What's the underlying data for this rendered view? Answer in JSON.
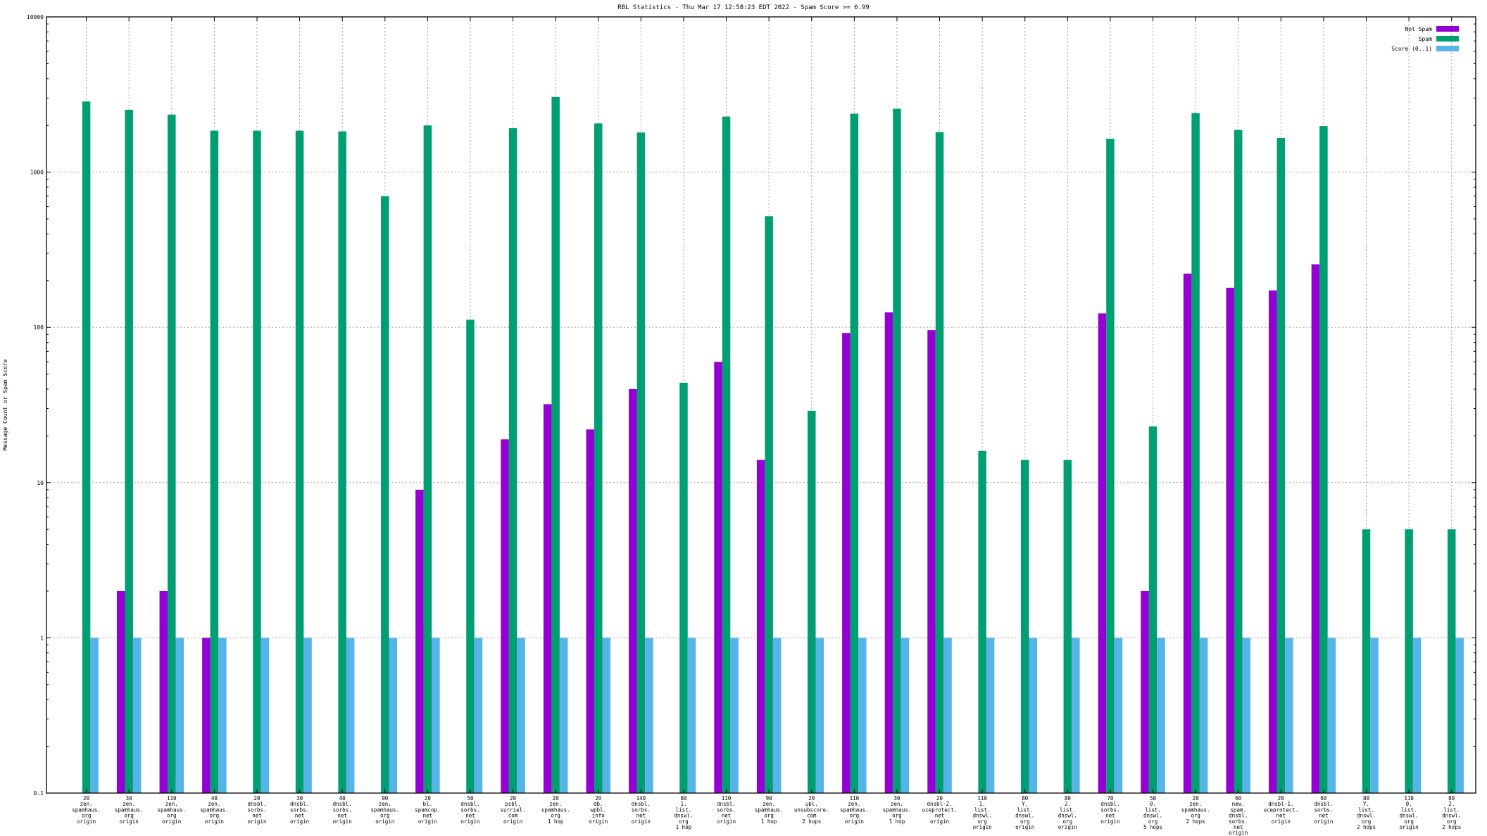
{
  "chart_data": {
    "type": "bar",
    "title": "RBL Statistics - Thu Mar 17 12:58:23 EDT 2022 - Spam Score >= 0.99",
    "xlabel": "",
    "ylabel": "Message Count or Spam Score",
    "yscale": "log",
    "ylim": [
      0.1,
      10000
    ],
    "yticks": [
      "0.1",
      "1",
      "10",
      "100",
      "1000",
      "10000"
    ],
    "grid": true,
    "legend_position": "top-right",
    "categories": [
      [
        "20",
        "zen.",
        "spamhaus.",
        "org",
        "origin"
      ],
      [
        "30",
        "zen.",
        "spamhaus.",
        "org",
        "origin"
      ],
      [
        "110",
        "zen.",
        "spamhaus.",
        "org",
        "origin"
      ],
      [
        "40",
        "zen.",
        "spamhaus.",
        "org",
        "origin"
      ],
      [
        "20",
        "dnsbl.",
        "sorbs.",
        "net",
        "origin"
      ],
      [
        "30",
        "dnsbl.",
        "sorbs.",
        "net",
        "origin"
      ],
      [
        "40",
        "dnsbl.",
        "sorbs.",
        "net",
        "origin"
      ],
      [
        "90",
        "zen.",
        "spamhaus.",
        "org",
        "origin"
      ],
      [
        "20",
        "bl.",
        "spamcop.",
        "net",
        "origin"
      ],
      [
        "50",
        "dnsbl.",
        "sorbs.",
        "net",
        "origin"
      ],
      [
        "20",
        "psbl.",
        "surriel.",
        "com",
        "origin"
      ],
      [
        "20",
        "zen.",
        "spamhaus.",
        "org",
        "1 hop"
      ],
      [
        "20",
        "db.",
        "wpbl.",
        "info",
        "origin"
      ],
      [
        "140",
        "dnsbl.",
        "sorbs.",
        "net",
        "origin"
      ],
      [
        "80",
        "1.",
        "list.",
        "dnswl.",
        "org",
        "1 hop"
      ],
      [
        "110",
        "dnsbl.",
        "sorbs.",
        "net",
        "origin"
      ],
      [
        "90",
        "zen.",
        "spamhaus.",
        "org",
        "1 hop"
      ],
      [
        "20",
        "ubl.",
        "unsubscore.",
        "com",
        "2 hops"
      ],
      [
        "110",
        "zen.",
        "spamhaus.",
        "org",
        "origin"
      ],
      [
        "30",
        "zen.",
        "spamhaus.",
        "org",
        "1 hop"
      ],
      [
        "20",
        "dnsbl-2.",
        "uceprotect.",
        "net",
        "origin"
      ],
      [
        "110",
        "1.",
        "list.",
        "dnswl.",
        "org",
        "origin"
      ],
      [
        "80",
        "Y.",
        "list.",
        "dnswl.",
        "org",
        "origin"
      ],
      [
        "80",
        "2.",
        "list.",
        "dnswl.",
        "org",
        "origin"
      ],
      [
        "70",
        "dnsbl.",
        "sorbs.",
        "net",
        "origin"
      ],
      [
        "50",
        "0.",
        "list.",
        "dnswl.",
        "org",
        "5 hops"
      ],
      [
        "20",
        "zen.",
        "spamhaus.",
        "org",
        "2 hops"
      ],
      [
        "60",
        "new.",
        "spam.",
        "dnsbl.",
        "sorbs.",
        "net",
        "origin"
      ],
      [
        "20",
        "dnsbl-1.",
        "uceprotect.",
        "net",
        "origin"
      ],
      [
        "60",
        "dnsbl.",
        "sorbs.",
        "net",
        "origin"
      ],
      [
        "80",
        "Y.",
        "list.",
        "dnswl.",
        "org",
        "2 hops"
      ],
      [
        "110",
        "0.",
        "list.",
        "dnswl.",
        "org",
        "origin"
      ],
      [
        "80",
        "2.",
        "list.",
        "dnswl.",
        "org",
        "2 hops"
      ]
    ],
    "series": [
      {
        "name": "Not Spam",
        "color": "#9400d3",
        "values": [
          null,
          2,
          2,
          1,
          null,
          null,
          null,
          null,
          9,
          null,
          19,
          32,
          22,
          40,
          null,
          60,
          14,
          null,
          92,
          125,
          96,
          null,
          null,
          null,
          123,
          2,
          222,
          180,
          173,
          255,
          null,
          null,
          null
        ]
      },
      {
        "name": "Spam",
        "color": "#009e73",
        "values": [
          2850,
          2520,
          2350,
          1850,
          1850,
          1850,
          1830,
          700,
          2000,
          112,
          1920,
          3050,
          2060,
          1800,
          44,
          2280,
          520,
          29,
          2380,
          2560,
          1810,
          16,
          14,
          14,
          1640,
          23,
          2400,
          1870,
          1660,
          1980,
          5,
          5,
          5
        ]
      },
      {
        "name": "Score (0..1)",
        "color": "#56b4e9",
        "values": [
          1,
          1,
          1,
          1,
          1,
          1,
          1,
          1,
          1,
          1,
          1,
          1,
          1,
          1,
          1,
          1,
          1,
          1,
          1,
          1,
          1,
          1,
          1,
          1,
          1,
          1,
          1,
          1,
          1,
          1,
          1,
          1,
          1
        ]
      }
    ]
  }
}
